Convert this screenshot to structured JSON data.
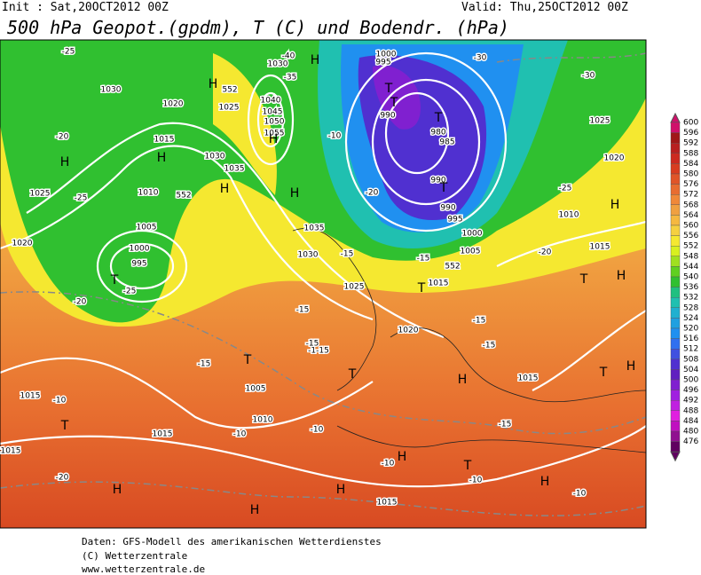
{
  "header": {
    "init": "Init : Sat,20OCT2012 00Z",
    "valid": "Valid: Thu,25OCT2012 00Z",
    "title": "500 hPa Geopot.(gpdm), T (C) und Bodendr. (hPa)"
  },
  "footer": [
    "Daten: GFS-Modell des amerikanischen Wetterdienstes",
    "(C) Wetterzentrale",
    "www.wetterzentrale.de"
  ],
  "legend": {
    "values": [
      600,
      596,
      592,
      588,
      584,
      580,
      576,
      572,
      568,
      564,
      560,
      556,
      552,
      548,
      544,
      540,
      536,
      532,
      528,
      524,
      520,
      516,
      512,
      508,
      504,
      500,
      496,
      492,
      488,
      484,
      480,
      476
    ],
    "colors": [
      "#d0106a",
      "#a01818",
      "#b82020",
      "#cc2a20",
      "#d83c20",
      "#e05428",
      "#e86c30",
      "#f08838",
      "#f0a040",
      "#f5b840",
      "#f5d040",
      "#f5e830",
      "#d8f020",
      "#a0e020",
      "#60d020",
      "#30c030",
      "#20c080",
      "#20c0b0",
      "#20b0d0",
      "#20a0e0",
      "#2090f0",
      "#3070f0",
      "#4050e0",
      "#5030d0",
      "#6020c0",
      "#8020d0",
      "#a020e0",
      "#c020e0",
      "#e020e0",
      "#c010c0",
      "#901090",
      "#600060"
    ]
  },
  "map_labels": [
    "1030",
    "1030",
    "1020",
    "1025",
    "1040",
    "1045",
    "1050",
    "1055",
    "1030",
    "1035",
    "1015",
    "1010",
    "1005",
    "1000",
    "995",
    "1025",
    "1020",
    "1035",
    "1030",
    "1025",
    "1020",
    "1015",
    "1005",
    "1010",
    "1015",
    "1015",
    "1015",
    "1015",
    "1015",
    "1015",
    "1010",
    "1020",
    "1025",
    "1000",
    "995",
    "990",
    "980",
    "985",
    "990",
    "990",
    "995",
    "1000",
    "1005",
    "-25",
    "-20",
    "-25",
    "-25",
    "-20",
    "-30",
    "-30",
    "-25",
    "-20",
    "-35",
    "-40",
    "-10",
    "-15",
    "-15",
    "-15",
    "-1-15",
    "-15",
    "-10",
    "-10",
    "-10",
    "-10",
    "-15",
    "-15",
    "-15",
    "-10",
    "-10",
    "-20",
    "-15",
    "-20",
    "552",
    "552",
    "552"
  ],
  "map_markers": [
    "H",
    "H",
    "H",
    "H",
    "H",
    "H",
    "H",
    "H",
    "H",
    "H",
    "H",
    "H",
    "H",
    "H",
    "H",
    "H",
    "T",
    "T",
    "T",
    "T",
    "T",
    "T",
    "T",
    "T",
    "T",
    "T",
    "T",
    "T"
  ]
}
